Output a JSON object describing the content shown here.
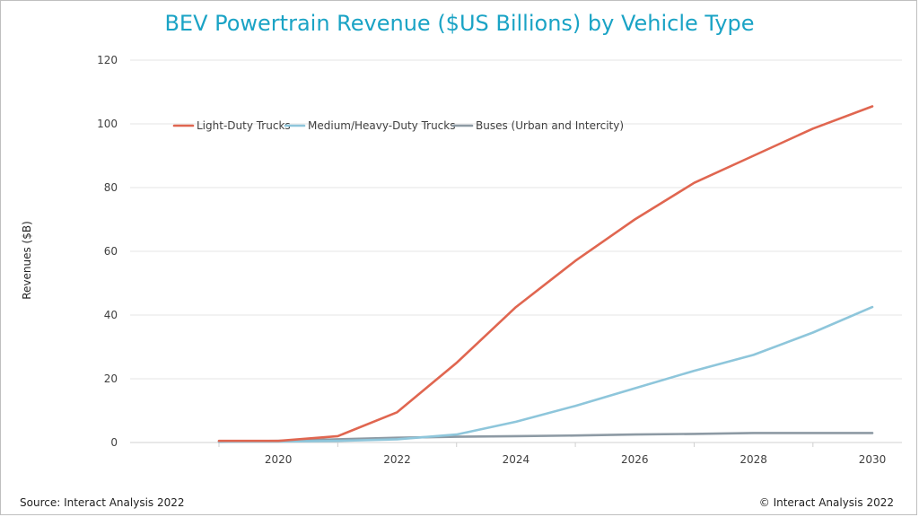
{
  "colors": {
    "title": "#1aa3c5",
    "light_duty": "#e06650",
    "medium_heavy": "#8ec6db",
    "buses": "#8d9aa4",
    "grid": "#e6e6e6",
    "axis": "#d0d0d0"
  },
  "footer": {
    "source": "Source: Interact Analysis 2022",
    "copyright": "© Interact Analysis 2022"
  },
  "chart_data": {
    "type": "line",
    "title": "BEV Powertrain Revenue ($US Billions) by Vehicle Type",
    "xlabel": "",
    "ylabel": "Revenues ($B)",
    "x": [
      2019,
      2020,
      2021,
      2022,
      2023,
      2024,
      2025,
      2026,
      2027,
      2028,
      2029,
      2030
    ],
    "x_tick_labels": [
      "2020",
      "2022",
      "2024",
      "2026",
      "2028",
      "2030"
    ],
    "ylim": [
      0,
      120
    ],
    "y_ticks": [
      0,
      20,
      40,
      60,
      80,
      100,
      120
    ],
    "grid": true,
    "legend": "top-left",
    "series": [
      {
        "name": "Light-Duty Trucks",
        "values": [
          0.5,
          0.5,
          2.0,
          9.5,
          25.0,
          42.5,
          57.0,
          70.0,
          81.5,
          90.0,
          98.5,
          105.5
        ]
      },
      {
        "name": "Medium/Heavy-Duty Trucks",
        "values": [
          0.2,
          0.3,
          0.5,
          1.0,
          2.5,
          6.5,
          11.5,
          17.0,
          22.5,
          27.5,
          34.5,
          42.5
        ]
      },
      {
        "name": "Buses (Urban and Intercity)",
        "values": [
          0.3,
          0.5,
          1.0,
          1.5,
          1.8,
          2.0,
          2.2,
          2.5,
          2.7,
          3.0,
          3.0,
          3.0
        ]
      }
    ]
  }
}
